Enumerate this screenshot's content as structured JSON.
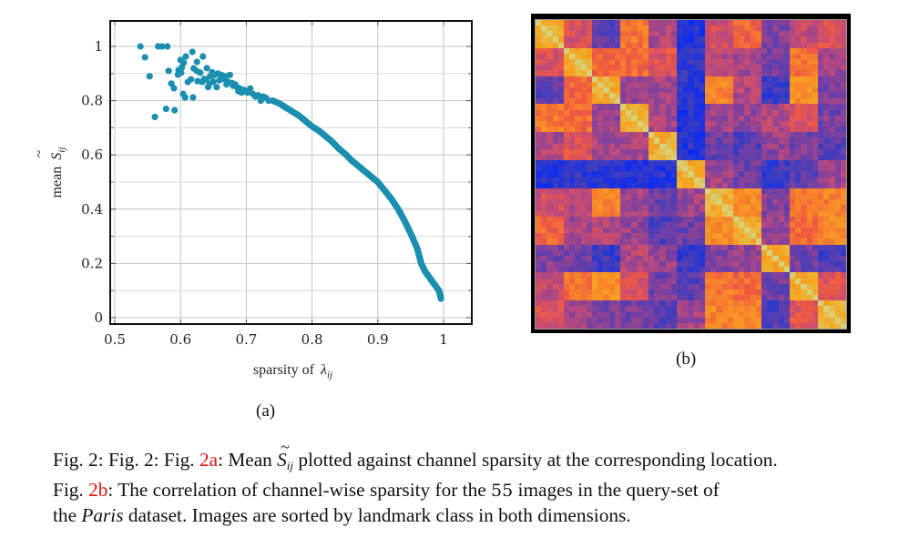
{
  "figure_number": "Fig. 2:",
  "chart_data": [
    {
      "type": "scatter",
      "panel_label": "(a)",
      "xlabel_prefix": "sparsity of",
      "xlabel_symbol": "λ",
      "xlabel_subscript": "ij",
      "ylabel_prefix": "mean",
      "ylabel_symbol": "S",
      "ylabel_subscript": "ij",
      "xlim": [
        0.48,
        1.045
      ],
      "ylim": [
        -0.025,
        1.11
      ],
      "grid": true,
      "xticks": [
        0.5,
        0.6,
        0.7,
        0.8,
        0.9,
        1.0
      ],
      "xtick_labels": [
        "0.5",
        "0.6",
        "0.7",
        "0.8",
        "0.9",
        "1"
      ],
      "yticks": [
        0,
        0.2,
        0.4,
        0.6,
        0.8,
        1.0
      ],
      "ytick_labels": [
        "0",
        "0.2",
        "0.4",
        "0.6",
        "0.8",
        "1"
      ],
      "minor_yticks": [
        0.1,
        0.3,
        0.5,
        0.7,
        0.9
      ],
      "marker_color": "#1a8fb0",
      "scattered_points": [
        [
          0.539,
          1.0
        ],
        [
          0.546,
          0.96
        ],
        [
          0.553,
          0.89
        ],
        [
          0.561,
          0.74
        ],
        [
          0.566,
          1.0
        ],
        [
          0.572,
          1.0
        ],
        [
          0.58,
          1.0
        ],
        [
          0.578,
          0.77
        ],
        [
          0.591,
          0.765
        ],
        [
          0.582,
          0.91
        ],
        [
          0.586,
          0.863
        ],
        [
          0.59,
          0.846
        ],
        [
          0.596,
          0.896
        ],
        [
          0.597,
          0.913
        ],
        [
          0.6,
          0.95
        ],
        [
          0.602,
          0.923
        ],
        [
          0.601,
          0.903
        ],
        [
          0.604,
          0.825
        ],
        [
          0.605,
          0.94
        ],
        [
          0.607,
          0.812
        ],
        [
          0.608,
          0.963
        ],
        [
          0.611,
          0.869
        ],
        [
          0.616,
          0.879
        ],
        [
          0.618,
          0.98
        ],
        [
          0.619,
          0.812
        ],
        [
          0.62,
          0.919
        ],
        [
          0.625,
          0.909
        ],
        [
          0.625,
          0.943
        ],
        [
          0.626,
          0.872
        ],
        [
          0.63,
          0.903
        ],
        [
          0.633,
          0.869
        ],
        [
          0.634,
          0.963
        ],
        [
          0.636,
          0.88
        ],
        [
          0.639,
          0.879
        ],
        [
          0.64,
          0.92
        ],
        [
          0.642,
          0.85
        ],
        [
          0.644,
          0.862
        ],
        [
          0.645,
          0.89
        ],
        [
          0.648,
          0.905
        ],
        [
          0.65,
          0.87
        ],
        [
          0.652,
          0.895
        ],
        [
          0.655,
          0.85
        ],
        [
          0.657,
          0.9
        ],
        [
          0.659,
          0.875
        ],
        [
          0.662,
          0.895
        ],
        [
          0.665,
          0.88
        ],
        [
          0.668,
          0.89
        ],
        [
          0.67,
          0.86
        ],
        [
          0.672,
          0.87
        ],
        [
          0.675,
          0.895
        ],
        [
          0.678,
          0.865
        ],
        [
          0.68,
          0.855
        ],
        [
          0.683,
          0.86
        ],
        [
          0.686,
          0.85
        ],
        [
          0.688,
          0.835
        ],
        [
          0.69,
          0.845
        ],
        [
          0.693,
          0.83
        ],
        [
          0.696,
          0.84
        ],
        [
          0.699,
          0.835
        ],
        [
          0.702,
          0.83
        ],
        [
          0.706,
          0.845
        ],
        [
          0.71,
          0.825
        ],
        [
          0.714,
          0.815
        ],
        [
          0.718,
          0.82
        ],
        [
          0.722,
          0.8
        ],
        [
          0.726,
          0.815
        ],
        [
          0.73,
          0.81
        ],
        [
          0.734,
          0.8
        ]
      ],
      "curve_points": [
        [
          0.74,
          0.8
        ],
        [
          0.75,
          0.79
        ],
        [
          0.76,
          0.775
        ],
        [
          0.77,
          0.76
        ],
        [
          0.78,
          0.745
        ],
        [
          0.79,
          0.725
        ],
        [
          0.8,
          0.705
        ],
        [
          0.81,
          0.69
        ],
        [
          0.82,
          0.67
        ],
        [
          0.83,
          0.65
        ],
        [
          0.84,
          0.625
        ],
        [
          0.852,
          0.6
        ],
        [
          0.86,
          0.58
        ],
        [
          0.87,
          0.56
        ],
        [
          0.88,
          0.54
        ],
        [
          0.89,
          0.52
        ],
        [
          0.9,
          0.5
        ],
        [
          0.91,
          0.47
        ],
        [
          0.92,
          0.44
        ],
        [
          0.931,
          0.4
        ],
        [
          0.94,
          0.36
        ],
        [
          0.952,
          0.3
        ],
        [
          0.96,
          0.255
        ],
        [
          0.966,
          0.2
        ],
        [
          0.972,
          0.17
        ],
        [
          0.978,
          0.15
        ],
        [
          0.986,
          0.123
        ],
        [
          0.993,
          0.1
        ],
        [
          0.996,
          0.07
        ]
      ]
    },
    {
      "type": "heatmap",
      "panel_label": "(b)",
      "n_images": 55,
      "n_classes": 11,
      "images_per_class": 5,
      "colormap": [
        "#0a2cf0",
        "#3a3cc0",
        "#7a40a0",
        "#c04a78",
        "#f05a40",
        "#f88a28",
        "#f5a820",
        "#d6d27a"
      ],
      "block_correlation": [
        [
          1.0,
          0.5,
          0.22,
          0.66,
          0.4,
          0.08,
          0.48,
          0.6,
          0.3,
          0.44,
          0.5
        ],
        [
          0.5,
          1.0,
          0.62,
          0.62,
          0.52,
          0.12,
          0.4,
          0.38,
          0.28,
          0.64,
          0.36
        ],
        [
          0.22,
          0.62,
          1.0,
          0.36,
          0.36,
          0.1,
          0.7,
          0.4,
          0.14,
          0.74,
          0.3
        ],
        [
          0.66,
          0.62,
          0.36,
          1.0,
          0.38,
          0.06,
          0.36,
          0.34,
          0.4,
          0.5,
          0.28
        ],
        [
          0.4,
          0.52,
          0.36,
          0.38,
          1.0,
          0.08,
          0.24,
          0.2,
          0.34,
          0.28,
          0.22
        ],
        [
          0.08,
          0.12,
          0.1,
          0.06,
          0.08,
          1.0,
          0.36,
          0.26,
          0.14,
          0.22,
          0.36
        ],
        [
          0.48,
          0.4,
          0.7,
          0.36,
          0.24,
          0.36,
          1.0,
          0.74,
          0.3,
          0.66,
          0.7
        ],
        [
          0.6,
          0.38,
          0.4,
          0.34,
          0.2,
          0.26,
          0.74,
          1.0,
          0.34,
          0.62,
          0.72
        ],
        [
          0.3,
          0.28,
          0.14,
          0.4,
          0.34,
          0.14,
          0.3,
          0.34,
          1.0,
          0.26,
          0.18
        ],
        [
          0.44,
          0.64,
          0.74,
          0.5,
          0.28,
          0.22,
          0.66,
          0.62,
          0.26,
          1.0,
          0.52
        ],
        [
          0.5,
          0.36,
          0.3,
          0.28,
          0.22,
          0.36,
          0.7,
          0.72,
          0.18,
          0.52,
          1.0
        ]
      ]
    }
  ],
  "caption": {
    "line1_lead": "Fig. 2: Fig. ",
    "ref_a": "2a",
    "line1_mid": ": Mean ",
    "symbol_S": "S",
    "symbol_sub": "ij",
    "line1_tail": " plotted against channel sparsity at the corresponding location.",
    "line2_lead": "Fig. ",
    "ref_b": "2b",
    "line2_mid": ": The correlation of channel-wise sparsity for the ",
    "count": "55",
    "line2_tail": " images in the query-set of",
    "line3_lead": "the ",
    "dataset": "Paris",
    "line3_tail": " dataset. Images are sorted by landmark class in both dimensions."
  }
}
